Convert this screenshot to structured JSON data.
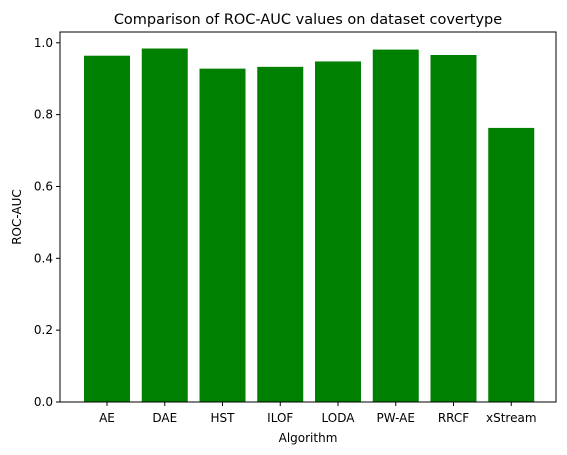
{
  "chart_data": {
    "type": "bar",
    "title": "Comparison of ROC-AUC values on dataset covertype",
    "xlabel": "Algorithm",
    "ylabel": "ROC-AUC",
    "categories": [
      "AE",
      "DAE",
      "HST",
      "ILOF",
      "LODA",
      "PW-AE",
      "RRCF",
      "xStream"
    ],
    "values": [
      0.964,
      0.984,
      0.928,
      0.933,
      0.948,
      0.981,
      0.966,
      0.763
    ],
    "ylim": [
      0,
      1.03
    ],
    "yticks": [
      "0.0",
      "0.2",
      "0.4",
      "0.6",
      "0.8",
      "1.0"
    ],
    "bar_color": "#008000",
    "grid": false,
    "legend": "none"
  }
}
